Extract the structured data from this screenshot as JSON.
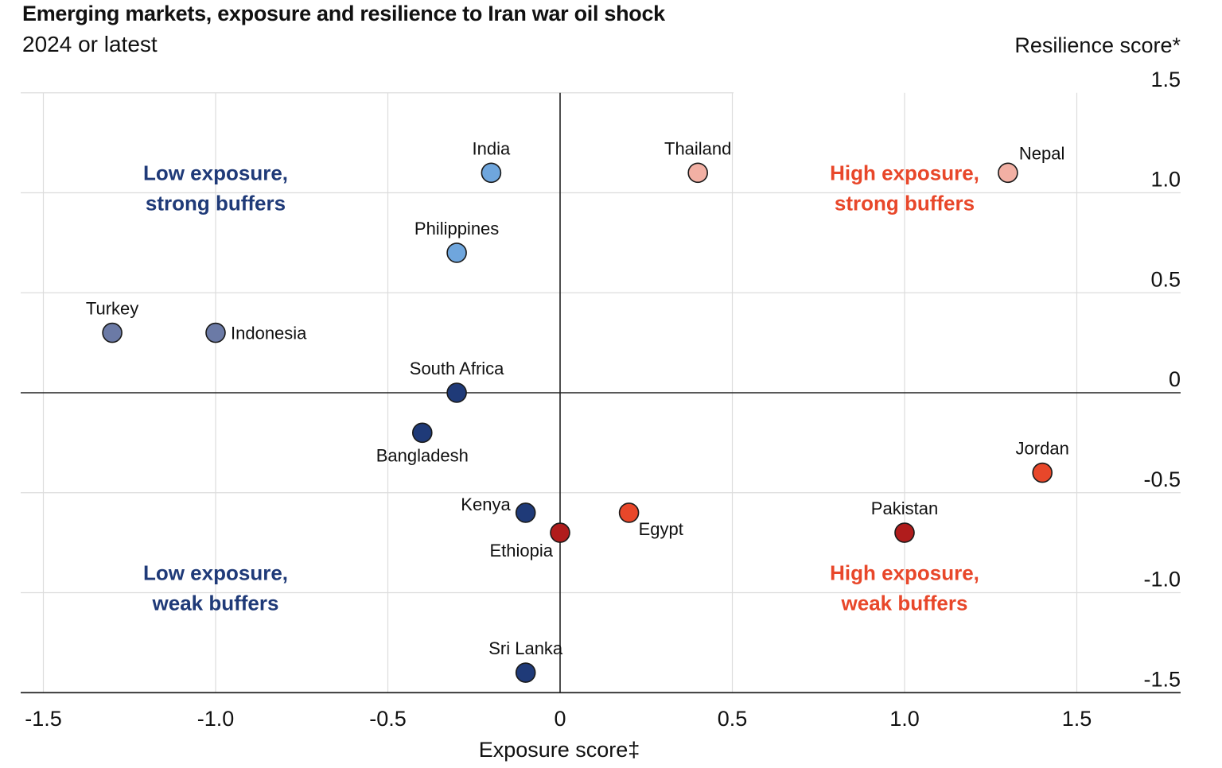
{
  "header": {
    "title": "Emerging markets, exposure and resilience to Iran war oil shock",
    "subtitle": "2024 or latest"
  },
  "colors": {
    "navy": "#1f3a78",
    "slate": "#6b7aa6",
    "light_blue": "#6fa6dd",
    "pink": "#f2b0a4",
    "orange": "#e8472a",
    "dark_red": "#b01c1c",
    "blue_text": "#1f3a78",
    "orange_text": "#e8472a",
    "grid": "#dcdcdc",
    "axis": "#222222"
  },
  "chart_data": {
    "type": "scatter",
    "xlabel": "Exposure score‡",
    "ylabel": "Resilience score*",
    "xlim": [
      -1.5,
      1.8
    ],
    "ylim": [
      -1.5,
      1.5
    ],
    "x_ticks": [
      -1.5,
      -1.0,
      -0.5,
      0,
      0.5,
      1.0,
      1.5
    ],
    "x_tick_labels": [
      "-1.5",
      "-1.0",
      "-0.5",
      "0",
      "0.5",
      "1.0",
      "1.5"
    ],
    "y_ticks": [
      1.5,
      1.0,
      0.5,
      0,
      -0.5,
      -1.0,
      -1.5
    ],
    "y_tick_labels": [
      "1.5",
      "1.0",
      "0.5",
      "0",
      "-0.5",
      "-1.0",
      "-1.5"
    ],
    "grid": true,
    "points": [
      {
        "label": "India",
        "x": -0.2,
        "y": 1.1,
        "color": "#6fa6dd",
        "label_pos": "above"
      },
      {
        "label": "Thailand",
        "x": 0.4,
        "y": 1.1,
        "color": "#f2b0a4",
        "label_pos": "above"
      },
      {
        "label": "Nepal",
        "x": 1.3,
        "y": 1.1,
        "color": "#f2b0a4",
        "label_pos": "above-right"
      },
      {
        "label": "Philippines",
        "x": -0.3,
        "y": 0.7,
        "color": "#6fa6dd",
        "label_pos": "above"
      },
      {
        "label": "Turkey",
        "x": -1.3,
        "y": 0.3,
        "color": "#6b7aa6",
        "label_pos": "above"
      },
      {
        "label": "Indonesia",
        "x": -1.0,
        "y": 0.3,
        "color": "#6b7aa6",
        "label_pos": "right"
      },
      {
        "label": "South Africa",
        "x": -0.3,
        "y": 0.0,
        "color": "#1f3a78",
        "label_pos": "above"
      },
      {
        "label": "Bangladesh",
        "x": -0.4,
        "y": -0.2,
        "color": "#1f3a78",
        "label_pos": "below"
      },
      {
        "label": "Jordan",
        "x": 1.4,
        "y": -0.4,
        "color": "#e8472a",
        "label_pos": "above"
      },
      {
        "label": "Kenya",
        "x": -0.1,
        "y": -0.6,
        "color": "#1f3a78",
        "label_pos": "above-left"
      },
      {
        "label": "Egypt",
        "x": 0.2,
        "y": -0.6,
        "color": "#e8472a",
        "label_pos": "below-right"
      },
      {
        "label": "Ethiopia",
        "x": 0.0,
        "y": -0.7,
        "color": "#b01c1c",
        "label_pos": "below-left"
      },
      {
        "label": "Pakistan",
        "x": 1.0,
        "y": -0.7,
        "color": "#b01c1c",
        "label_pos": "above"
      },
      {
        "label": "Sri Lanka",
        "x": -0.1,
        "y": -1.4,
        "color": "#1f3a78",
        "label_pos": "above"
      }
    ],
    "quadrant_labels": [
      {
        "lines": [
          "Low exposure,",
          "strong buffers"
        ],
        "x": -1.0,
        "y": 1.1,
        "color": "#1f3a78"
      },
      {
        "lines": [
          "High exposure,",
          "strong buffers"
        ],
        "x": 1.0,
        "y": 1.1,
        "color": "#e8472a"
      },
      {
        "lines": [
          "Low exposure,",
          "weak buffers"
        ],
        "x": -1.0,
        "y": -0.9,
        "color": "#1f3a78"
      },
      {
        "lines": [
          "High exposure,",
          "weak buffers"
        ],
        "x": 1.0,
        "y": -0.9,
        "color": "#e8472a"
      }
    ]
  }
}
